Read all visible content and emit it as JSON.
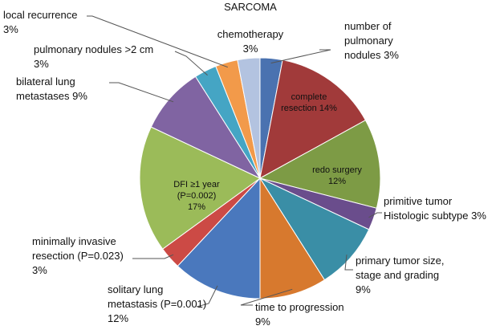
{
  "chart_data": {
    "type": "pie",
    "title": "SARCOMA",
    "slices": [
      {
        "label": "number of pulmonary nodules 3%",
        "lines": [
          "number of",
          "pulmonary",
          "nodules 3%"
        ],
        "value": 3,
        "color": "#4a72b0",
        "placement": "outside"
      },
      {
        "label": "complete resection 14%",
        "lines": [
          "complete",
          "resection 14%"
        ],
        "value": 14,
        "color": "#a13a3a",
        "placement": "inside"
      },
      {
        "label": "redo surgery 12%",
        "lines": [
          "redo surgery",
          "12%"
        ],
        "value": 12,
        "color": "#7d9b45",
        "placement": "inside"
      },
      {
        "label": "primitive tumor Histologic subtype 3%",
        "lines": [
          "primitive tumor",
          "Histologic subtype 3%"
        ],
        "value": 3,
        "color": "#6a4d8c",
        "placement": "outside"
      },
      {
        "label": "primary tumor size, stage and grading 9%",
        "lines": [
          "primary tumor size,",
          "stage and grading",
          "9%"
        ],
        "value": 9,
        "color": "#3a8ea6",
        "placement": "outside"
      },
      {
        "label": "time to progression 9%",
        "lines": [
          "time to progression",
          "9%"
        ],
        "value": 9,
        "color": "#d7792e",
        "placement": "outside"
      },
      {
        "label": "solitary lung metastasis (P=0.001) 12%",
        "lines": [
          "solitary lung",
          "metastasis (P=0.001)",
          "12%"
        ],
        "value": 12,
        "color": "#4a78bd",
        "placement": "outside"
      },
      {
        "label": "minimally invasive resection (P=0.023) 3%",
        "lines": [
          "minimally invasive",
          "resection (P=0.023)",
          "3%"
        ],
        "value": 3,
        "color": "#cc4a45",
        "placement": "outside"
      },
      {
        "label": "DFI ≥1 year (P=0.002) 17%",
        "lines": [
          "DFI ≥1 year",
          "(P=0.002)",
          "17%"
        ],
        "value": 17,
        "color": "#9bbb59",
        "placement": "inside"
      },
      {
        "label": "bilateral lung metastases 9%",
        "lines": [
          "bilateral lung",
          "metastases 9%"
        ],
        "value": 9,
        "color": "#8064a2",
        "placement": "outside"
      },
      {
        "label": "pulmonary nodules >2 cm 3%",
        "lines": [
          "pulmonary nodules >2 cm",
          "3%"
        ],
        "value": 3,
        "color": "#45a5c4",
        "placement": "outside"
      },
      {
        "label": "local recurrence 3%",
        "lines": [
          "local recurrence",
          "3%"
        ],
        "value": 3,
        "color": "#f29a4a",
        "placement": "outside"
      },
      {
        "label": "chemotherapy 3%",
        "lines": [
          "chemotherapy",
          "3%"
        ],
        "value": 3,
        "color": "#b3c3e0",
        "placement": "outside"
      }
    ],
    "legend": "none"
  }
}
